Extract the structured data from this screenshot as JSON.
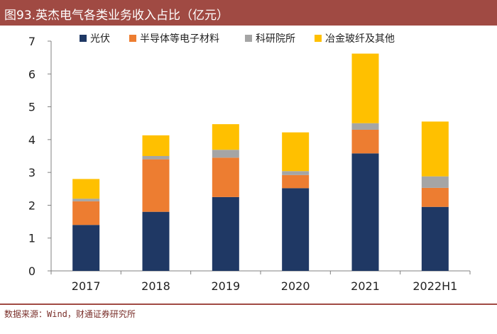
{
  "header": {
    "title": "图93.英杰电气各类业务收入占比（亿元）"
  },
  "footer": {
    "source": "数据来源：Wind，财通证券研究所"
  },
  "chart_data": {
    "type": "bar",
    "stacked": true,
    "title": "图93.英杰电气各类业务收入占比（亿元）",
    "xlabel": "",
    "ylabel": "",
    "ylim": [
      0,
      7
    ],
    "yticks": [
      0,
      1,
      2,
      3,
      4,
      5,
      6,
      7
    ],
    "grid": false,
    "legend": "top",
    "categories": [
      "2017",
      "2018",
      "2019",
      "2020",
      "2021",
      "2022H1"
    ],
    "series": [
      {
        "name": "光伏",
        "color": "#1f3864",
        "values": [
          1.4,
          1.8,
          2.25,
          2.52,
          3.58,
          1.95
        ]
      },
      {
        "name": "半导体等电子材料",
        "color": "#ed7d31",
        "values": [
          0.72,
          1.6,
          1.2,
          0.4,
          0.72,
          0.58
        ]
      },
      {
        "name": "科研院所",
        "color": "#a5a5a5",
        "values": [
          0.08,
          0.1,
          0.24,
          0.12,
          0.2,
          0.35
        ]
      },
      {
        "name": "冶金玻纤及其他",
        "color": "#ffc000",
        "values": [
          0.6,
          0.63,
          0.78,
          1.18,
          2.12,
          1.67
        ]
      }
    ]
  }
}
